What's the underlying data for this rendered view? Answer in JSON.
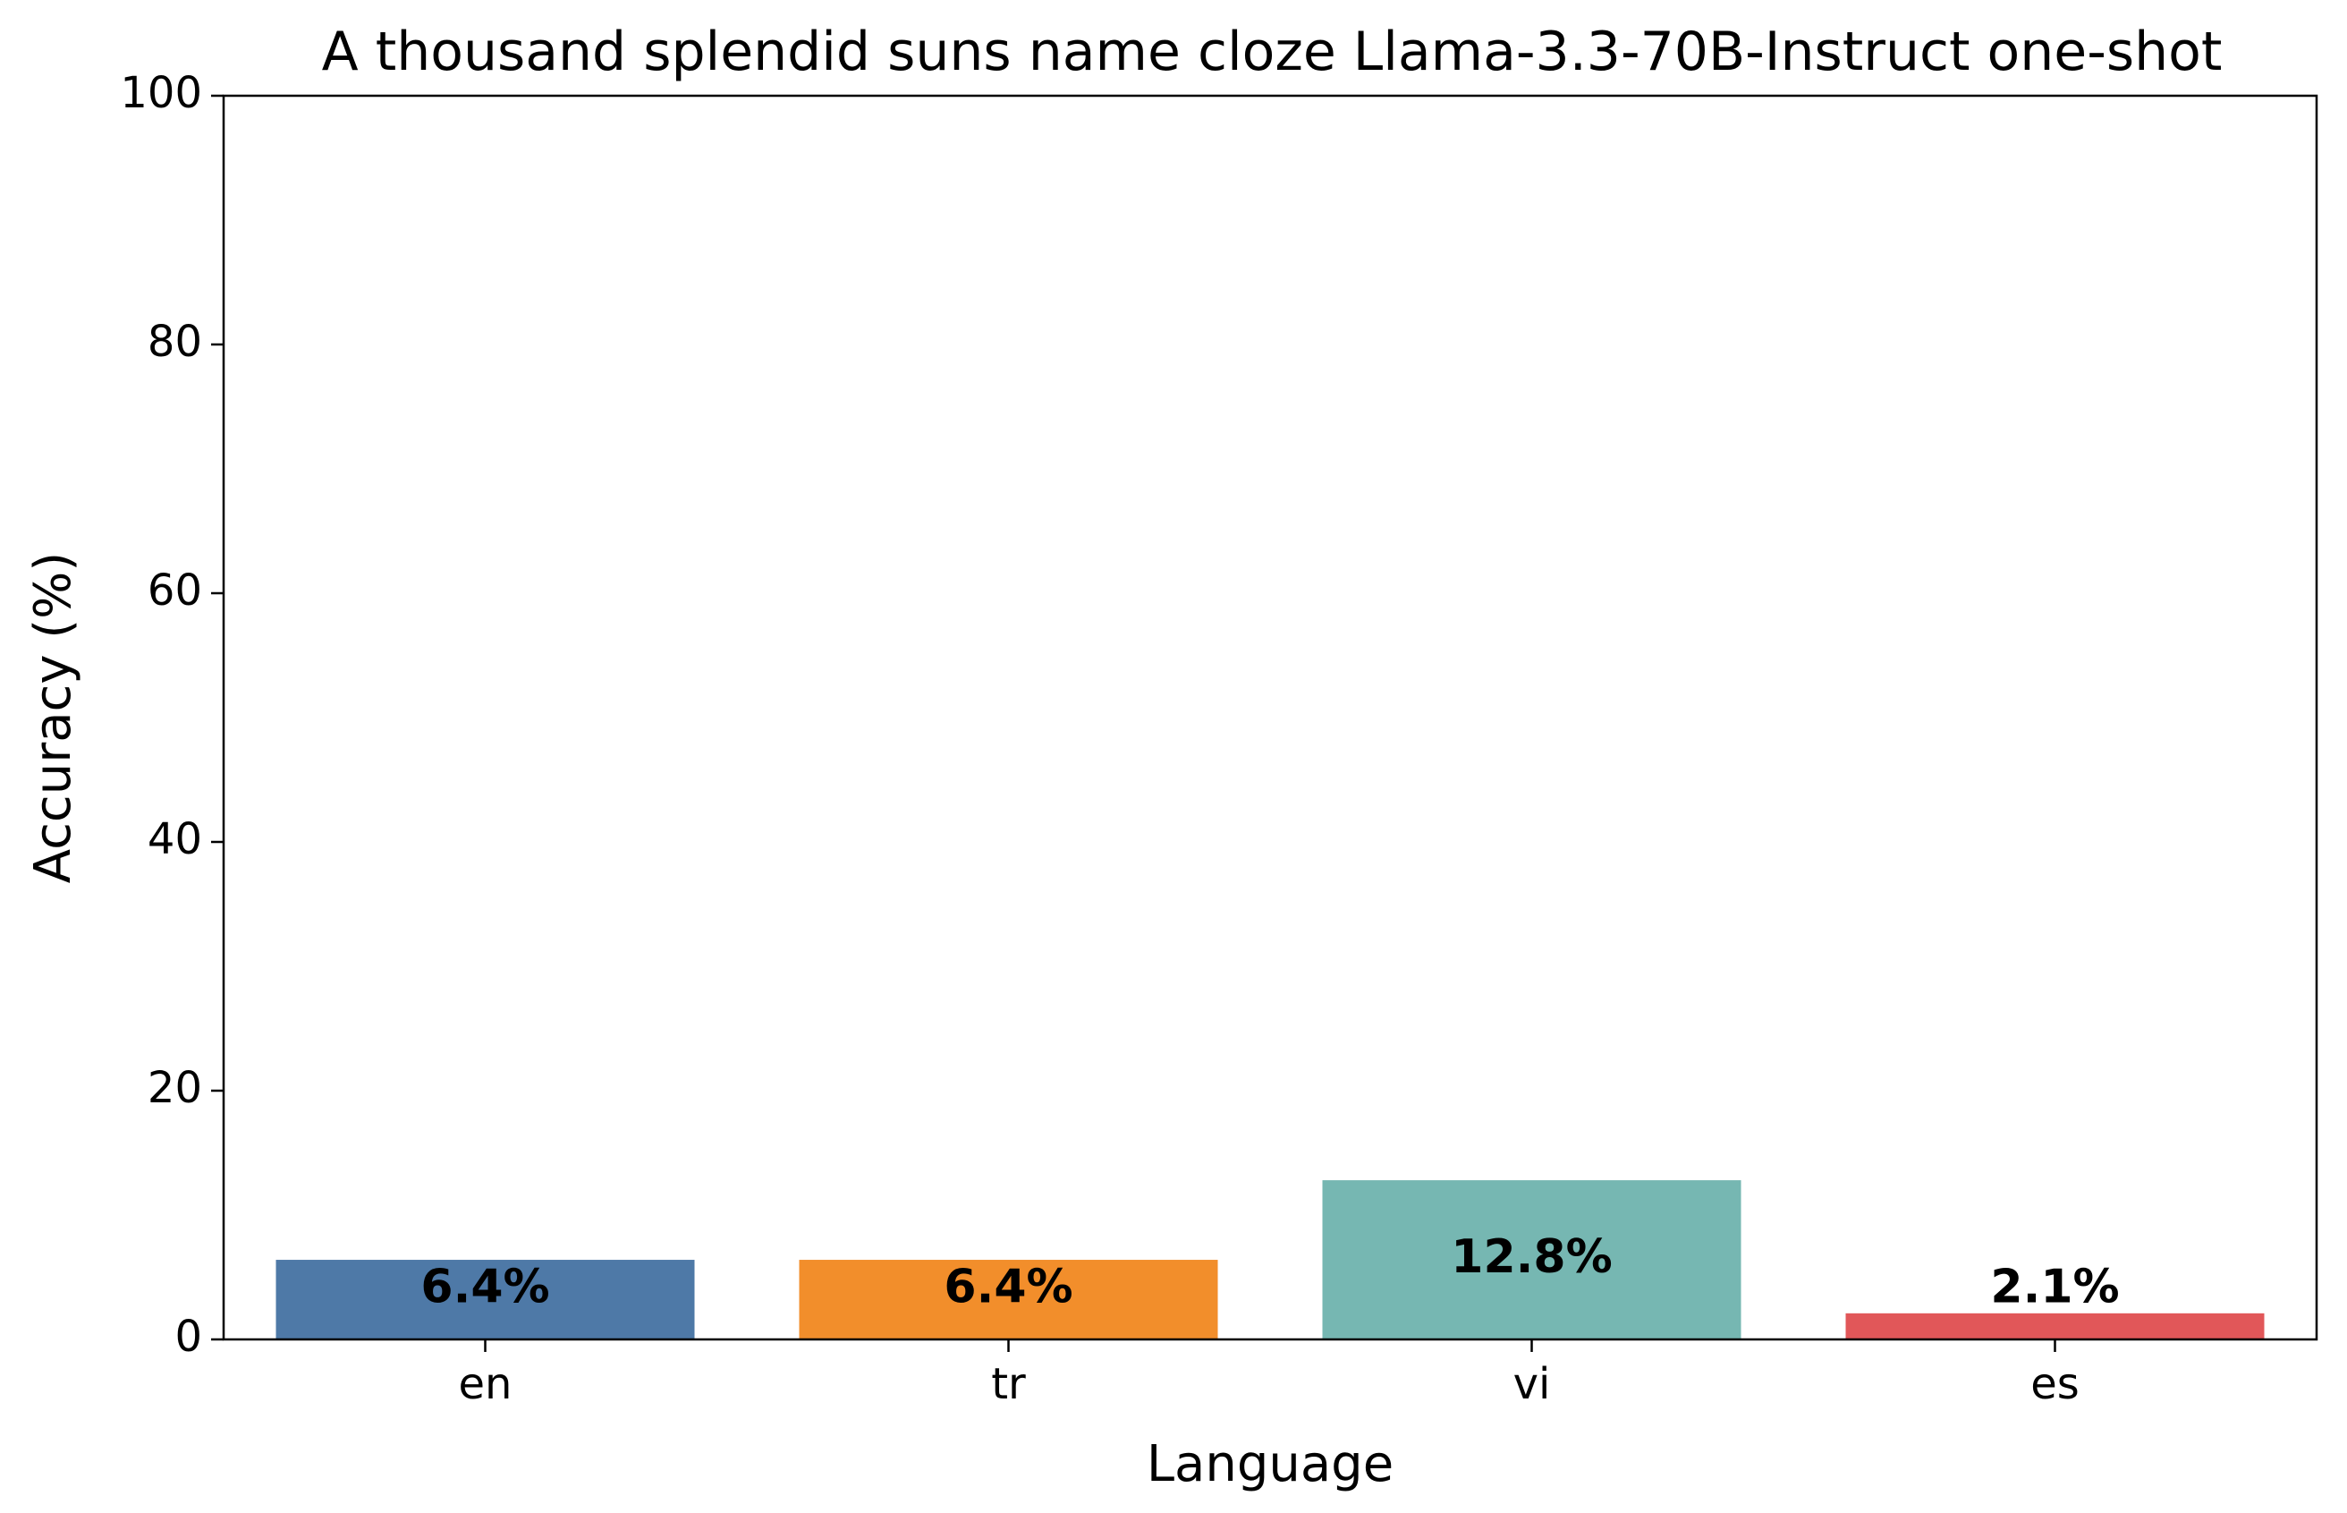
{
  "chart_data": {
    "type": "bar",
    "title": "A thousand splendid suns name cloze Llama-3.3-70B-Instruct one-shot",
    "xlabel": "Language",
    "ylabel": "Accuracy (%)",
    "categories": [
      "en",
      "tr",
      "vi",
      "es"
    ],
    "values": [
      6.4,
      6.4,
      12.8,
      2.1
    ],
    "value_labels": [
      "6.4%",
      "6.4%",
      "12.8%",
      "2.1%"
    ],
    "colors": [
      "#4e79a7",
      "#f28e2b",
      "#76b7b2",
      "#e15759"
    ],
    "ylim": [
      0,
      100
    ],
    "yticks": [
      0,
      20,
      40,
      60,
      80,
      100
    ],
    "grid": false,
    "legend": "none"
  }
}
